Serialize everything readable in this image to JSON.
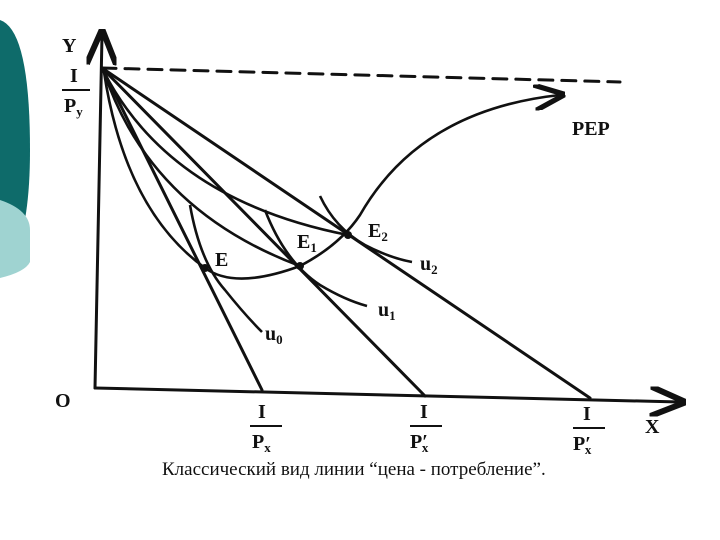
{
  "axes": {
    "y": "Y",
    "x": "X",
    "origin": "O"
  },
  "intercepts": {
    "y": {
      "num": "I",
      "den": "P",
      "sub": "y"
    },
    "x0": {
      "num": "I",
      "den": "P",
      "sub": "x"
    },
    "x1": {
      "num": "I",
      "den": "P′",
      "sub": "x"
    },
    "x2": {
      "num": "I",
      "den": "P′",
      "sub": "x"
    }
  },
  "points": [
    {
      "label": "E"
    },
    {
      "label": "E",
      "sub": "1"
    },
    {
      "label": "E",
      "sub": "2"
    }
  ],
  "curves": [
    {
      "label": "u",
      "sub": "0"
    },
    {
      "label": "u",
      "sub": "1"
    },
    {
      "label": "u",
      "sub": "2"
    }
  ],
  "pep": "PEP",
  "caption": "Классический вид линии “цена - потребление”."
}
